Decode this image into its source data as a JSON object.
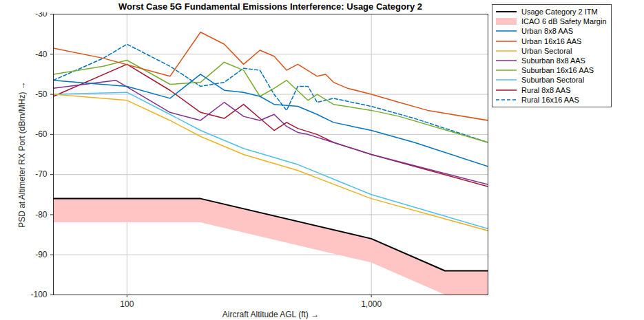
{
  "chart_data": {
    "type": "line",
    "title": "Worst Case 5G Fundamental Emissions Interference: Usage Category 2",
    "x_label": "Aircraft Altitude AGL (ft)",
    "y_label": "PSD at Altimeter RX Port (dBm/MHz)",
    "log": "x",
    "grid": true,
    "legend": "right",
    "xlim": [
      50,
      3000
    ],
    "xticks": [
      100,
      {
        "value": 1000,
        "label": "1,000"
      }
    ],
    "ylim": [
      -100,
      -30
    ],
    "yticks": [
      -100,
      -90,
      -80,
      -70,
      -60,
      -50,
      -40,
      -30
    ],
    "series": [
      {
        "name": "Usage Category 2 ITM",
        "color": "#000000",
        "line_style": "solid",
        "x": [
          50,
          200,
          1000,
          2000,
          3000
        ],
        "values": [
          -76,
          -76,
          -86,
          -94,
          -94
        ]
      },
      {
        "name": "ICAO 6 dB Safety Margin",
        "type": "area",
        "color": "#ffc4c4",
        "x": [
          50,
          200,
          1000,
          2000,
          3000
        ],
        "lower": [
          -82,
          -82,
          -92,
          -100,
          -100
        ],
        "upper": [
          -76,
          -76,
          -86,
          -94,
          -94
        ]
      },
      {
        "name": "Urban 8x8 AAS",
        "color": "#0072bd",
        "line_style": "solid",
        "x": [
          50,
          100,
          150,
          200,
          250,
          300,
          350,
          400,
          500,
          600,
          700,
          1000,
          1500,
          3000
        ],
        "values": [
          -46.5,
          -48,
          -51,
          -45,
          -49,
          -49.5,
          -50.5,
          -52.5,
          -53,
          -55,
          -57,
          -59,
          -62,
          -68
        ]
      },
      {
        "name": "Urban 16x16 AAS",
        "color": "#d95319",
        "line_style": "solid",
        "x": [
          50,
          80,
          150,
          200,
          250,
          300,
          350,
          400,
          450,
          500,
          600,
          650,
          700,
          800,
          1000,
          1300,
          1700,
          3000
        ],
        "values": [
          -38.5,
          -41,
          -45.5,
          -34.5,
          -37.5,
          -42.5,
          -39,
          -40.5,
          -44,
          -42.5,
          -45.5,
          -45,
          -47,
          -48.5,
          -50,
          -52,
          -54,
          -56.5
        ]
      },
      {
        "name": "Urban Sectoral",
        "color": "#edb120",
        "line_style": "solid",
        "x": [
          50,
          100,
          150,
          200,
          300,
          500,
          1000,
          3000
        ],
        "values": [
          -50,
          -51.5,
          -56.5,
          -60.5,
          -65,
          -69,
          -76,
          -84
        ]
      },
      {
        "name": "Suburban 8x8 AAS",
        "color": "#7e2f8e",
        "line_style": "solid",
        "x": [
          50,
          90,
          150,
          200,
          250,
          300,
          350,
          400,
          450,
          500,
          550,
          700,
          1000,
          3000
        ],
        "values": [
          -48.5,
          -46.5,
          -54.5,
          -56.5,
          -52,
          -55.5,
          -56.5,
          -55,
          -58,
          -59.5,
          -60,
          -62,
          -65,
          -72.5
        ]
      },
      {
        "name": "Suburban 16x16 AAS",
        "color": "#77ac30",
        "line_style": "solid",
        "x": [
          50,
          80,
          100,
          150,
          200,
          250,
          300,
          350,
          400,
          450,
          550,
          600,
          700,
          1000,
          1300,
          3000
        ],
        "values": [
          -45,
          -43,
          -41.5,
          -47.5,
          -47,
          -42,
          -44,
          -50.5,
          -48.5,
          -46.5,
          -51.5,
          -50,
          -52.5,
          -54,
          -55.5,
          -62
        ]
      },
      {
        "name": "Suburban Sectoral",
        "color": "#4dbeee",
        "line_style": "solid",
        "x": [
          50,
          100,
          150,
          200,
          300,
          500,
          1000,
          3000
        ],
        "values": [
          -50,
          -49.5,
          -55,
          -59,
          -63.5,
          -67.5,
          -75,
          -83.5
        ]
      },
      {
        "name": "Rural 8x8 AAS",
        "color": "#a2142f",
        "line_style": "solid",
        "x": [
          50,
          100,
          150,
          200,
          250,
          300,
          350,
          400,
          450,
          500,
          600,
          700,
          1000,
          3000
        ],
        "values": [
          -50.5,
          -42.5,
          -49,
          -54.5,
          -56,
          -52.5,
          -56,
          -59,
          -57,
          -58.5,
          -60,
          -62,
          -65,
          -73
        ]
      },
      {
        "name": "Rural 16x16 AAS",
        "color": "#0072bd",
        "line_style": "dashed",
        "x": [
          50,
          80,
          100,
          150,
          200,
          250,
          300,
          350,
          400,
          450,
          500,
          550,
          600,
          700,
          1000,
          1500,
          3000
        ],
        "values": [
          -46.5,
          -41,
          -37.5,
          -43,
          -48,
          -47,
          -43.5,
          -44,
          -50,
          -54,
          -48,
          -48,
          -52,
          -51,
          -53,
          -56,
          -62
        ]
      }
    ]
  }
}
